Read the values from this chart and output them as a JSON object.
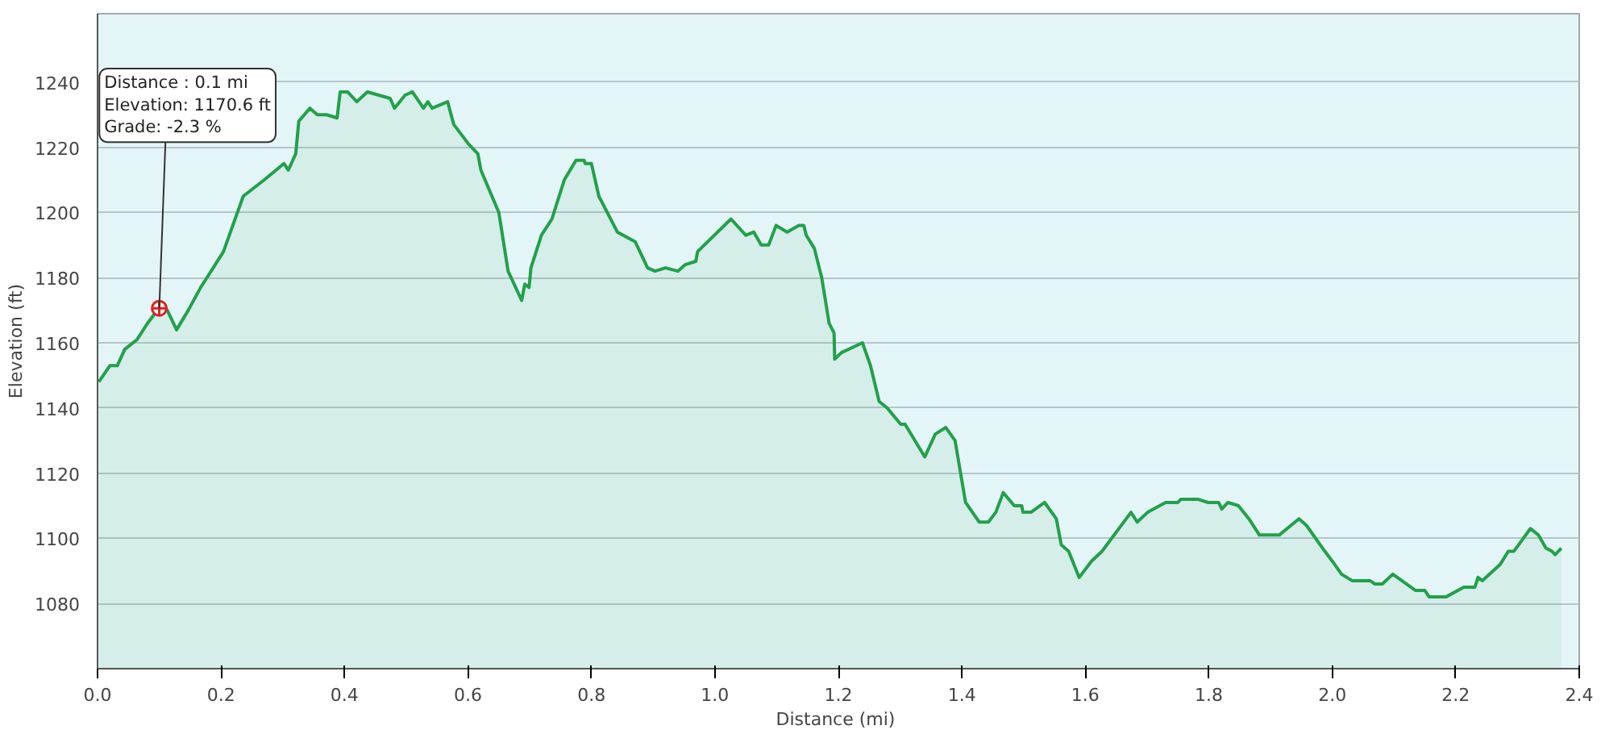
{
  "chart_data": {
    "type": "area",
    "xlabel": "Distance  (mi)",
    "ylabel": "Elevation (ft)",
    "color": "#22a04b",
    "grid": "y",
    "marker": "none",
    "xlim": [
      0,
      2.4
    ],
    "ylim": [
      1060,
      1261
    ],
    "xticks": [
      {
        "value": 0,
        "label": "0.0"
      },
      0.2,
      0.4,
      0.6,
      0.8,
      {
        "value": 1,
        "label": "1.0"
      },
      1.2,
      1.4,
      1.6,
      1.8,
      {
        "value": 2,
        "label": "2.0"
      },
      2.2,
      2.4
    ],
    "yticks": [
      1080,
      1100,
      1120,
      1140,
      1160,
      1180,
      1200,
      1220,
      1240
    ],
    "annotations": [
      {
        "text": "Distance : 0.1 mi\nElevation: 1170.6 ft\nGrade: -2.3 %",
        "x": 0.1,
        "y": 1170.6
      }
    ],
    "x": [
      0.002,
      0.02,
      0.032,
      0.044,
      0.064,
      0.081,
      0.101,
      0.113,
      0.128,
      0.147,
      0.167,
      0.184,
      0.204,
      0.236,
      0.27,
      0.302,
      0.309,
      0.321,
      0.326,
      0.344,
      0.356,
      0.371,
      0.388,
      0.393,
      0.405,
      0.42,
      0.437,
      0.474,
      0.481,
      0.498,
      0.51,
      0.528,
      0.535,
      0.542,
      0.567,
      0.577,
      0.601,
      0.616,
      0.621,
      0.65,
      0.665,
      0.687,
      0.692,
      0.699,
      0.702,
      0.719,
      0.736,
      0.756,
      0.775,
      0.788,
      0.79,
      0.8,
      0.812,
      0.842,
      0.871,
      0.891,
      0.903,
      0.92,
      0.94,
      0.952,
      0.969,
      0.972,
      1.026,
      1.05,
      1.063,
      1.075,
      1.087,
      1.099,
      1.117,
      1.136,
      1.144,
      1.148,
      1.161,
      1.173,
      1.185,
      1.193,
      1.194,
      1.205,
      1.239,
      1.252,
      1.266,
      1.279,
      1.301,
      1.308,
      1.34,
      1.357,
      1.374,
      1.389,
      1.406,
      1.428,
      1.443,
      1.455,
      1.467,
      1.485,
      1.497,
      1.499,
      1.512,
      1.534,
      1.553,
      1.561,
      1.573,
      1.59,
      1.61,
      1.627,
      1.674,
      1.684,
      1.701,
      1.73,
      1.75,
      1.755,
      1.782,
      1.799,
      1.816,
      1.821,
      1.831,
      1.848,
      1.865,
      1.882,
      1.914,
      1.946,
      1.958,
      1.988,
      2.0,
      2.015,
      2.032,
      2.061,
      2.069,
      2.081,
      2.098,
      2.135,
      2.15,
      2.157,
      2.184,
      2.213,
      2.231,
      2.236,
      2.243,
      2.272,
      2.285,
      2.294,
      2.321,
      2.334,
      2.346,
      2.356,
      2.361,
      2.371
    ],
    "values": [
      1148,
      1153,
      1153,
      1158,
      1161,
      1166,
      1171,
      1170,
      1164,
      1170,
      1177,
      1182,
      1188,
      1205,
      1210,
      1215,
      1213,
      1218,
      1228,
      1232,
      1230,
      1230,
      1229,
      1237,
      1237,
      1234,
      1237,
      1235,
      1232,
      1236,
      1237,
      1232,
      1234,
      1232,
      1234,
      1227,
      1221,
      1218,
      1213,
      1200,
      1182,
      1173,
      1178,
      1177,
      1183,
      1193,
      1198,
      1210,
      1216,
      1216,
      1215,
      1215,
      1205,
      1194,
      1191,
      1183,
      1182,
      1183,
      1182,
      1184,
      1185,
      1188,
      1198,
      1193,
      1194,
      1190,
      1190,
      1196,
      1194,
      1196,
      1196,
      1193,
      1189,
      1180,
      1166,
      1163,
      1155,
      1157,
      1160,
      1153,
      1142,
      1140,
      1135,
      1135,
      1125,
      1132,
      1134,
      1130,
      1111,
      1105,
      1105,
      1108,
      1114,
      1110,
      1110,
      1108,
      1108,
      1111,
      1106,
      1098,
      1096,
      1088,
      1093,
      1096,
      1108,
      1105,
      1108,
      1111,
      1111,
      1112,
      1112,
      1111,
      1111,
      1109,
      1111,
      1110,
      1106,
      1101,
      1101,
      1106,
      1104,
      1096,
      1093,
      1089,
      1087,
      1087,
      1086,
      1086,
      1089,
      1084,
      1084,
      1082,
      1082,
      1085,
      1085,
      1088,
      1087,
      1092,
      1096,
      1096,
      1103,
      1101,
      1097,
      1096,
      1095,
      1097
    ]
  }
}
